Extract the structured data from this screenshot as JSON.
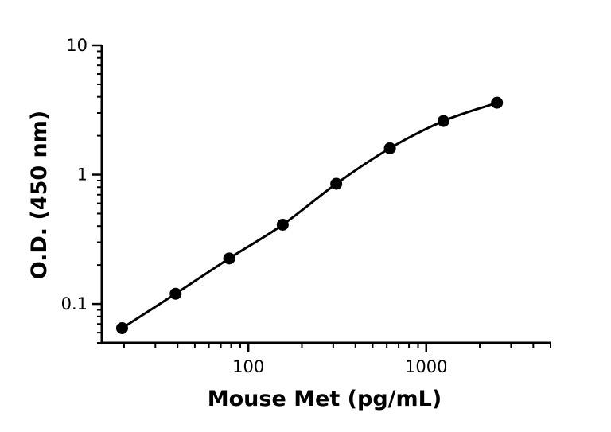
{
  "chart_data": {
    "type": "scatter",
    "title": "",
    "xlabel": "Mouse Met (pg/mL)",
    "ylabel": "O.D. (450 nm)",
    "x_scale": "log",
    "y_scale": "log",
    "xlim": [
      15,
      5000
    ],
    "ylim": [
      0.05,
      10
    ],
    "x_tick_labels": [
      "100",
      "1000"
    ],
    "y_tick_labels": [
      "0.1",
      "1",
      "10"
    ],
    "grid": false,
    "series": [
      {
        "x": [
          19.5,
          39,
          78,
          156,
          312,
          625,
          1250,
          2500
        ],
        "y": [
          0.065,
          0.12,
          0.225,
          0.41,
          0.85,
          1.6,
          2.6,
          3.6
        ]
      }
    ],
    "fit_curve": true
  }
}
